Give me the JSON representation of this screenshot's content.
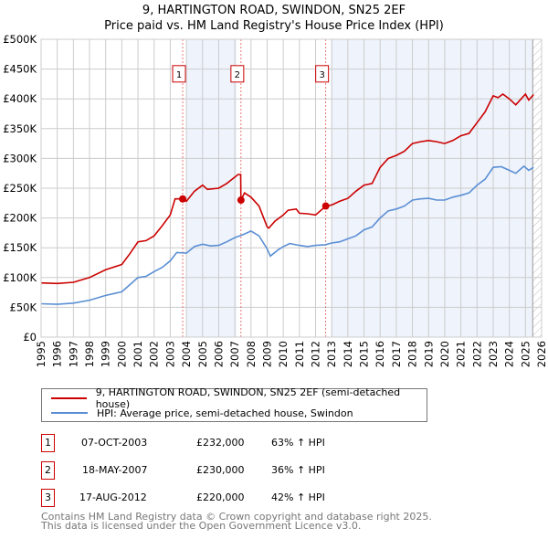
{
  "chart_data": {
    "type": "line",
    "title": "9, HARTINGTON ROAD, SWINDON, SN25 2EF",
    "subtitle": "Price paid vs. HM Land Registry's House Price Index (HPI)",
    "xlim": [
      1995,
      2026
    ],
    "ylim": [
      0,
      500000
    ],
    "x_ticks": [
      "1995",
      "1996",
      "1997",
      "1998",
      "1999",
      "2000",
      "2001",
      "2002",
      "2003",
      "2004",
      "2005",
      "2006",
      "2007",
      "2008",
      "2009",
      "2010",
      "2011",
      "2012",
      "2013",
      "2014",
      "2015",
      "2016",
      "2017",
      "2018",
      "2019",
      "2020",
      "2021",
      "2022",
      "2023",
      "2024",
      "2025",
      "2026"
    ],
    "y_ticks": [
      {
        "v": 0,
        "label": "£0"
      },
      {
        "v": 50000,
        "label": "£50K"
      },
      {
        "v": 100000,
        "label": "£100K"
      },
      {
        "v": 150000,
        "label": "£150K"
      },
      {
        "v": 200000,
        "label": "£200K"
      },
      {
        "v": 250000,
        "label": "£250K"
      },
      {
        "v": 300000,
        "label": "£300K"
      },
      {
        "v": 350000,
        "label": "£350K"
      },
      {
        "v": 400000,
        "label": "£400K"
      },
      {
        "v": 450000,
        "label": "£450K"
      },
      {
        "v": 500000,
        "label": "£500K"
      }
    ],
    "grid": true,
    "series": [
      {
        "name": "9, HARTINGTON ROAD, SWINDON, SN25 2EF (semi-detached house)",
        "color": "#cc0000",
        "x": [
          1995,
          1996,
          1997,
          1998,
          1999,
          2000,
          2000.5,
          2001,
          2001.5,
          2002,
          2002.5,
          2003,
          2003.3,
          2003.77,
          2004,
          2004.5,
          2005,
          2005.3,
          2006,
          2006.5,
          2007.2,
          2007.36,
          2007.38,
          2007.6,
          2008,
          2008.5,
          2009,
          2009.1,
          2009.5,
          2010,
          2010.3,
          2010.8,
          2011,
          2011.5,
          2012,
          2012.63,
          2013,
          2013.5,
          2014,
          2014.5,
          2015,
          2015.5,
          2016,
          2016.5,
          2017,
          2017.5,
          2018,
          2018.5,
          2019,
          2019.5,
          2020,
          2020.5,
          2021,
          2021.5,
          2022,
          2022.5,
          2023,
          2023.3,
          2023.6,
          2024,
          2024.4,
          2024.8,
          2025,
          2025.2,
          2025.5
        ],
        "y": [
          91000,
          90000,
          92000,
          100000,
          113000,
          122000,
          140000,
          160000,
          162000,
          170000,
          187000,
          205000,
          232000,
          232000,
          228000,
          245000,
          255000,
          248000,
          250000,
          258000,
          273000,
          273000,
          230000,
          242000,
          235000,
          220000,
          185000,
          183000,
          195000,
          205000,
          213000,
          215000,
          208000,
          207000,
          205000,
          220000,
          222000,
          228000,
          233000,
          245000,
          255000,
          258000,
          285000,
          300000,
          305000,
          312000,
          325000,
          328000,
          330000,
          328000,
          325000,
          330000,
          338000,
          342000,
          360000,
          378000,
          405000,
          402000,
          408000,
          400000,
          390000,
          402000,
          408000,
          398000,
          407000
        ]
      },
      {
        "name": "HPI: Average price, semi-detached house, Swindon",
        "color": "#5b8fd4",
        "x": [
          1995,
          1996,
          1997,
          1998,
          1999,
          2000,
          2000.5,
          2001,
          2001.5,
          2002,
          2002.5,
          2003,
          2003.4,
          2004,
          2004.5,
          2005,
          2005.5,
          2006,
          2006.5,
          2007,
          2007.5,
          2008,
          2008.5,
          2009,
          2009.2,
          2009.7,
          2010,
          2010.4,
          2011,
          2011.5,
          2012,
          2012.6,
          2013,
          2013.5,
          2014,
          2014.5,
          2015,
          2015.5,
          2016,
          2016.5,
          2017,
          2017.5,
          2018,
          2018.5,
          2019,
          2019.5,
          2020,
          2020.5,
          2021,
          2021.5,
          2022,
          2022.5,
          2023,
          2023.5,
          2024,
          2024.4,
          2024.9,
          2025.2,
          2025.5
        ],
        "y": [
          56000,
          55000,
          57000,
          62000,
          70000,
          76000,
          88000,
          100000,
          102000,
          110000,
          117000,
          128000,
          142000,
          141000,
          152000,
          156000,
          153000,
          154000,
          160000,
          167000,
          172000,
          178000,
          170000,
          148000,
          136000,
          147000,
          152000,
          157000,
          154000,
          152000,
          154000,
          155000,
          158000,
          160000,
          165000,
          170000,
          180000,
          185000,
          200000,
          212000,
          215000,
          220000,
          230000,
          232000,
          233000,
          230000,
          230000,
          235000,
          238000,
          242000,
          255000,
          265000,
          285000,
          286000,
          280000,
          275000,
          287000,
          280000,
          285000
        ]
      }
    ],
    "sales": [
      {
        "n": "1",
        "x": 2003.77,
        "y": 232000
      },
      {
        "n": "2",
        "x": 2007.38,
        "y": 230000
      },
      {
        "n": "3",
        "x": 2012.63,
        "y": 220000
      }
    ],
    "shaded_ranges": [
      [
        2004,
        2007.1
      ],
      [
        2012.95,
        2025.45
      ]
    ],
    "hatched_from": 2025.45,
    "legend_placement": "below"
  },
  "table": [
    {
      "n": "1",
      "date": "07-OCT-2003",
      "price": "£232,000",
      "hpi": "63% ↑ HPI"
    },
    {
      "n": "2",
      "date": "18-MAY-2007",
      "price": "£230,000",
      "hpi": "36% ↑ HPI"
    },
    {
      "n": "3",
      "date": "17-AUG-2012",
      "price": "£220,000",
      "hpi": "42% ↑ HPI"
    }
  ],
  "footer": {
    "line1": "Contains HM Land Registry data © Crown copyright and database right 2025.",
    "line2": "This data is licensed under the Open Government Licence v3.0."
  }
}
